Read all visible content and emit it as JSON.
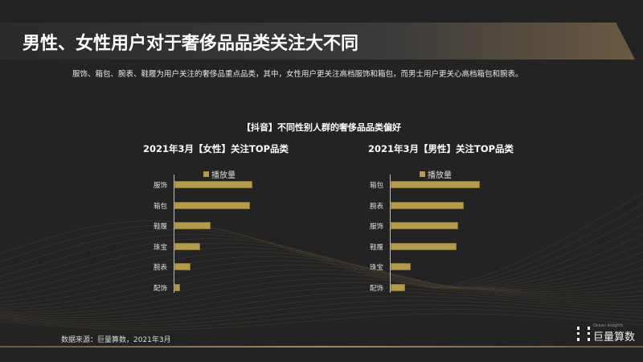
{
  "header": {
    "title": "男性、女性用户对于奢侈品品类关注大不同",
    "description": "服饰、箱包、腕表、鞋履为用户关注的奢侈品重点品类，其中，女性用户更关注高档服饰和箱包，而男士用户更关心高档箱包和腕表。"
  },
  "subtitle": "【抖音】不同性别人群的奢侈品品类偏好",
  "colors": {
    "bar": "#b39a4c",
    "background": "#232323"
  },
  "chart_data": [
    {
      "type": "bar",
      "orientation": "horizontal",
      "title": "2021年3月【女性】关注TOP品类",
      "legend": "播放量",
      "categories": [
        "服饰",
        "箱包",
        "鞋履",
        "珠宝",
        "腕表",
        "配饰"
      ],
      "values": [
        97,
        94,
        45,
        32,
        20,
        7
      ]
    },
    {
      "type": "bar",
      "orientation": "horizontal",
      "title": "2021年3月【男性】关注TOP品类",
      "legend": "播放量",
      "categories": [
        "箱包",
        "腕表",
        "服饰",
        "鞋履",
        "珠宝",
        "配饰"
      ],
      "values": [
        111,
        91,
        84,
        82,
        25,
        18
      ]
    }
  ],
  "footer": {
    "source": "数据来源：巨量算数，2021年3月",
    "logo_text": "巨量算数",
    "logo_en": "Ocean Insights"
  }
}
